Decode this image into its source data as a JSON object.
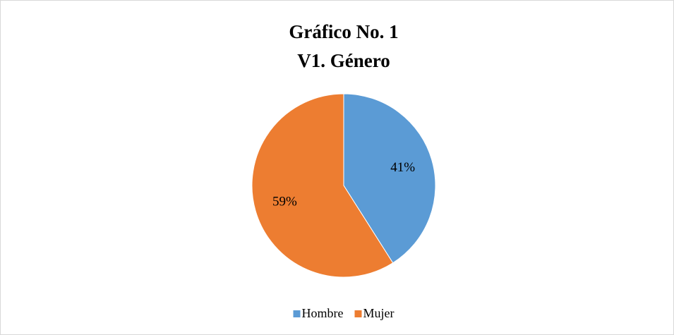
{
  "chart_data": {
    "type": "pie",
    "title": [
      "Gráfico No. 1",
      "V1. Género"
    ],
    "categories": [
      "Hombre",
      "Mujer"
    ],
    "values": [
      41,
      59
    ],
    "value_labels": [
      "41%",
      "59%"
    ],
    "colors": [
      "#5b9bd5",
      "#ed7d31"
    ],
    "legend": "bottom"
  }
}
